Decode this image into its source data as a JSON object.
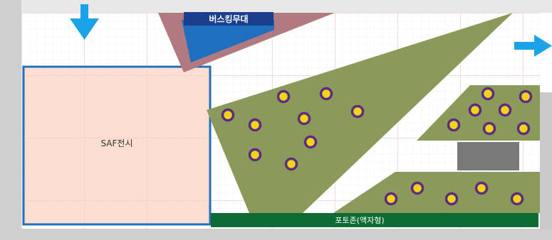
{
  "zones": {
    "busking_stage": "버스킹무대",
    "saf_exhibit": "SAF전시",
    "photo_zone": "포토존(액자형)"
  },
  "colors": {
    "outer_wall": "#c9c9c9",
    "floor": "#ffffff",
    "grid_major": "#f0b8b8",
    "grid_minor": "#f6d6d6",
    "saf_fill": "#fbd9c8",
    "saf_border": "#1f6fbf",
    "busking_triangle": "#b07a80",
    "busking_stage_fill": "#1f6fbf",
    "busking_label_bg": "#1a3f8c",
    "garden_fill": "#8b9a5a",
    "object_fill": "#7a7a7a",
    "photo_zone_fill": "#0e6b34",
    "arrow": "#1aa3e8",
    "dot_ring": "#5a2d82",
    "dot_fill": "#f3d21a"
  },
  "icons": {
    "entrance_arrow": "arrow-down-icon",
    "exit_arrow": "arrow-right-icon"
  },
  "dots": {
    "count_large_garden": 9,
    "count_upper_right_garden": 8,
    "count_lower_garden": 6
  }
}
